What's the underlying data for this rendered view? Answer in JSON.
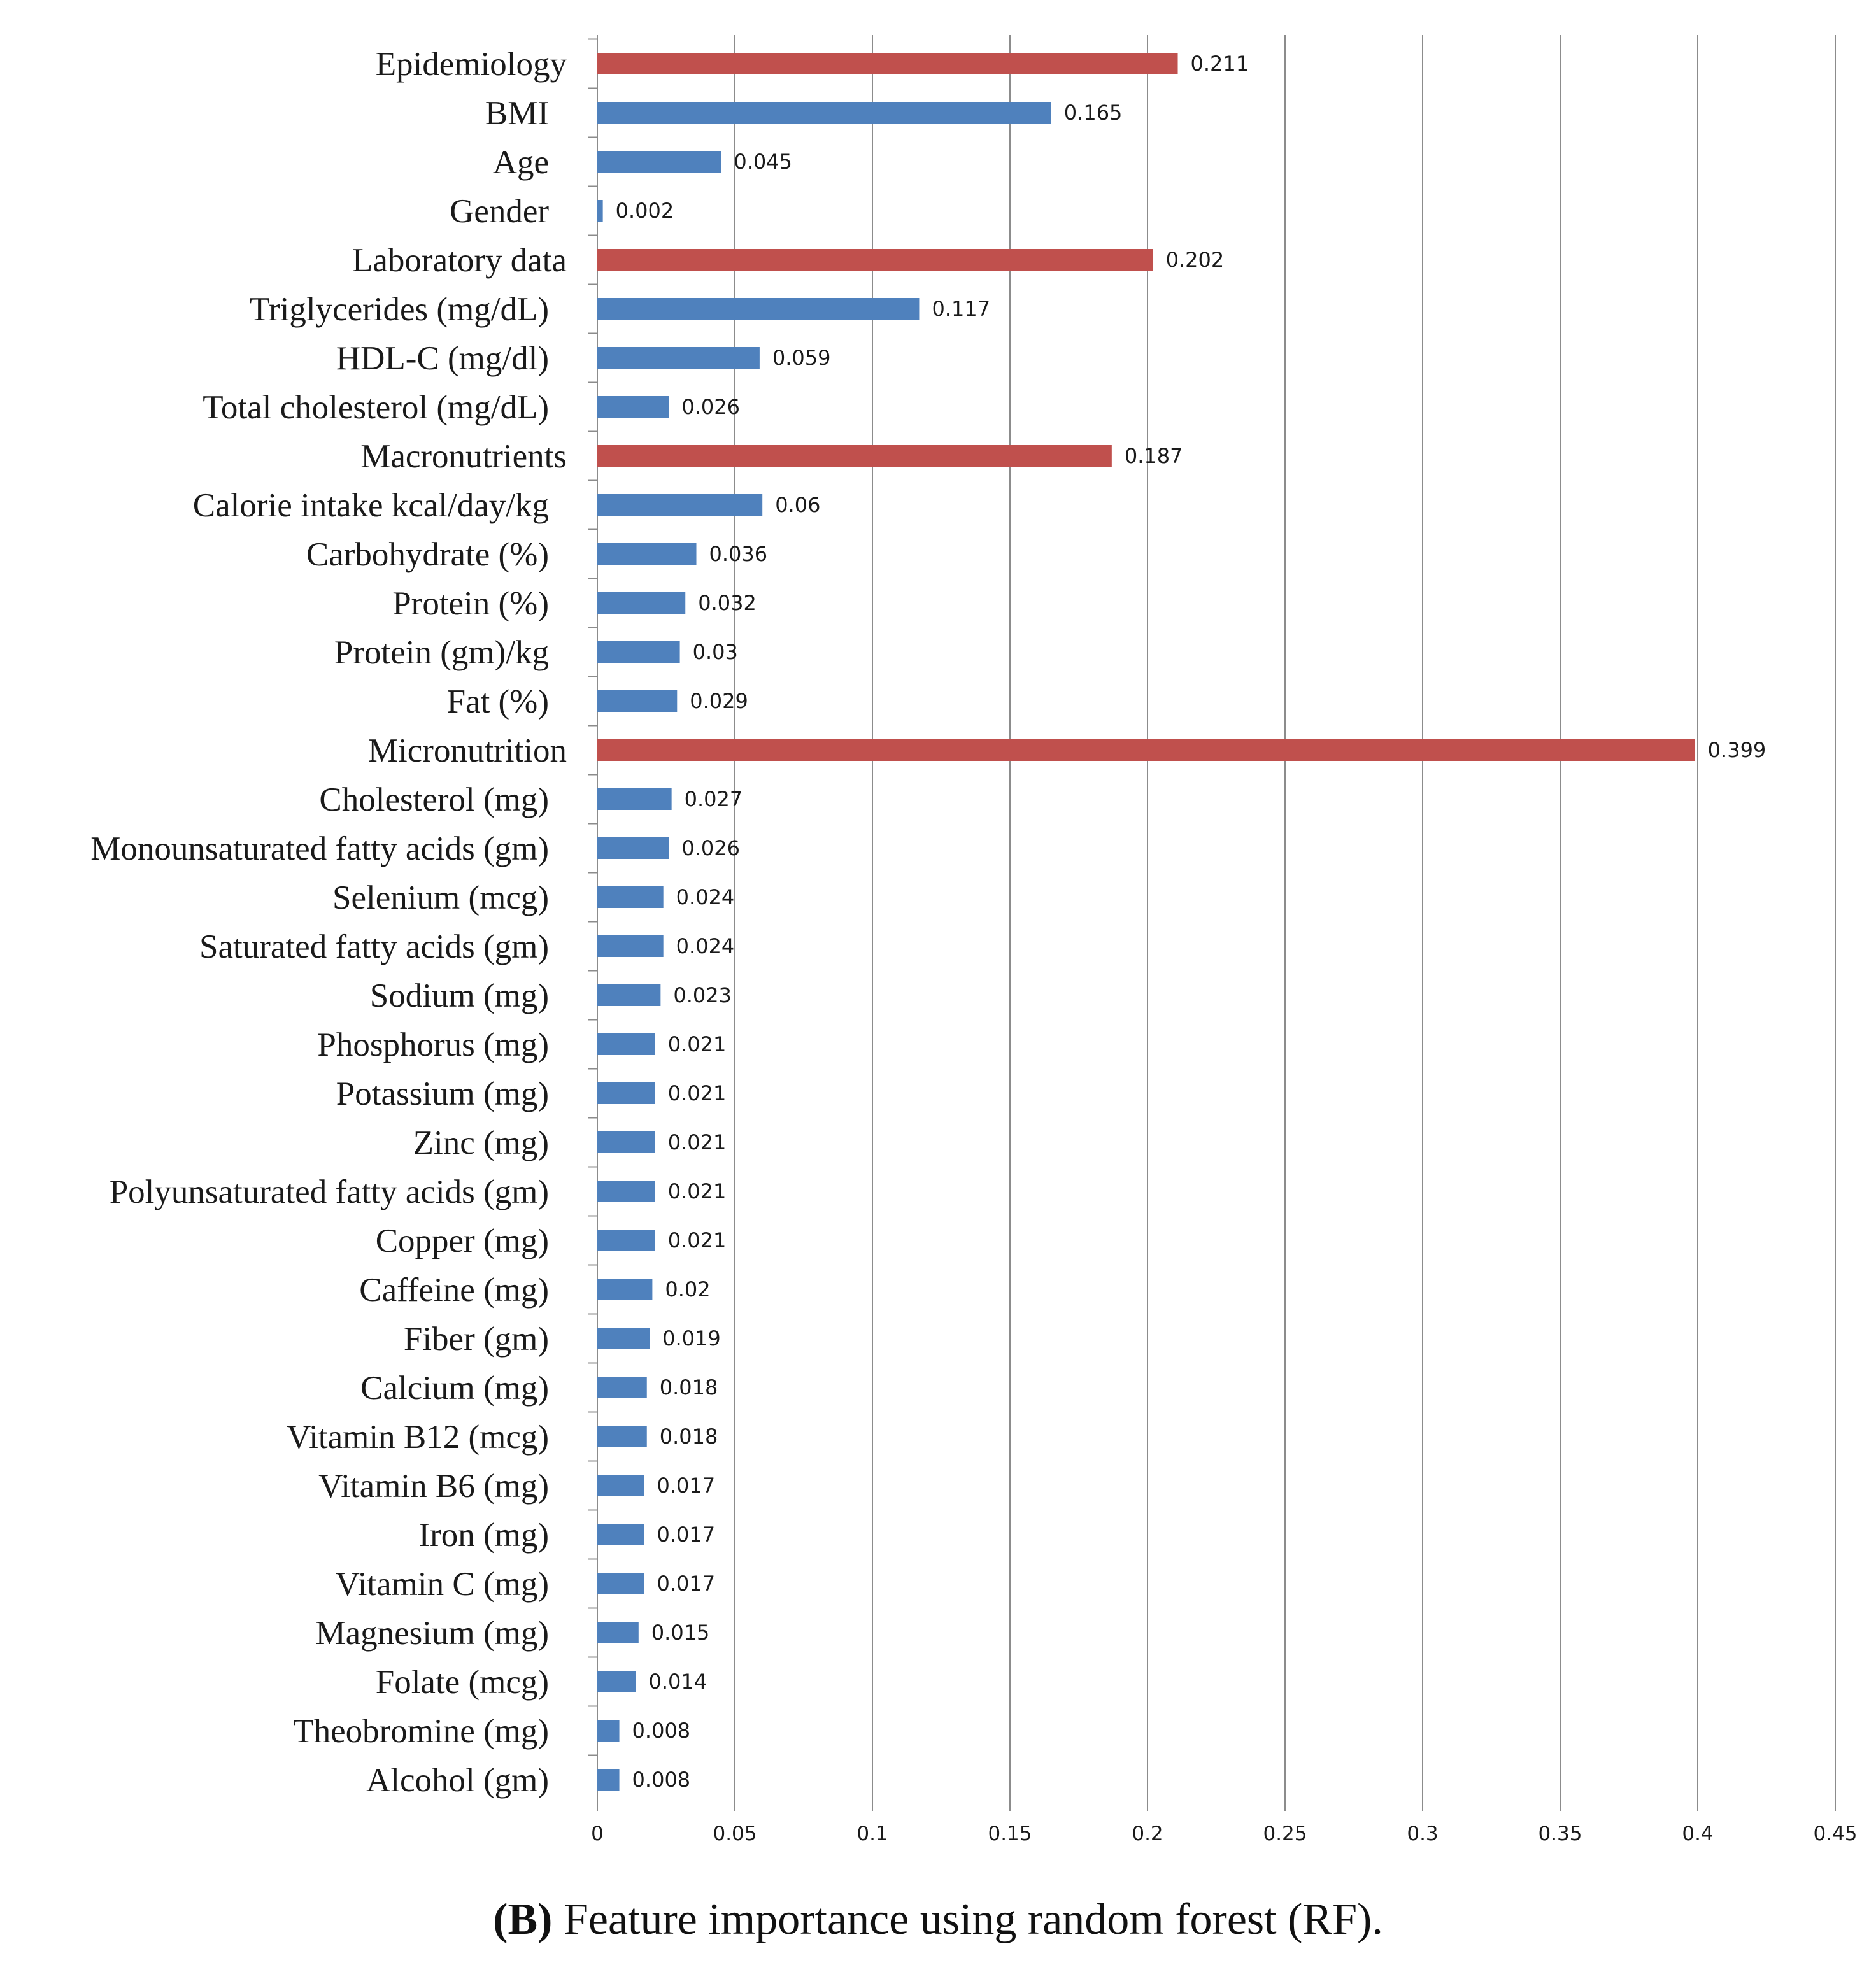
{
  "chart_data": {
    "type": "bar",
    "orientation": "horizontal",
    "title": "",
    "xlabel": "",
    "ylabel": "",
    "xlim": [
      0,
      0.45
    ],
    "ticks": [
      "0",
      "0.05",
      "0.1",
      "0.15",
      "0.2",
      "0.25",
      "0.3",
      "0.35",
      "0.4",
      "0.45"
    ],
    "grid": "vertical",
    "colors": {
      "group": "#c0504d",
      "feature": "#4f81bd"
    },
    "items": [
      {
        "label": "Epidemiology",
        "value": 0.211,
        "value_label": "0.211",
        "group": true
      },
      {
        "label": "BMI",
        "value": 0.165,
        "value_label": "0.165",
        "group": false
      },
      {
        "label": "Age",
        "value": 0.045,
        "value_label": "0.045",
        "group": false
      },
      {
        "label": "Gender",
        "value": 0.002,
        "value_label": "0.002",
        "group": false
      },
      {
        "label": "Laboratory data",
        "value": 0.202,
        "value_label": "0.202",
        "group": true
      },
      {
        "label": "Triglycerides (mg/dL)",
        "value": 0.117,
        "value_label": "0.117",
        "group": false
      },
      {
        "label": "HDL-C (mg/dl)",
        "value": 0.059,
        "value_label": "0.059",
        "group": false
      },
      {
        "label": "Total cholesterol (mg/dL)",
        "value": 0.026,
        "value_label": "0.026",
        "group": false
      },
      {
        "label": "Macronutrients",
        "value": 0.187,
        "value_label": "0.187",
        "group": true
      },
      {
        "label": "Calorie intake  kcal/day/kg",
        "value": 0.06,
        "value_label": "0.06",
        "group": false
      },
      {
        "label": "Carbohydrate (%)",
        "value": 0.036,
        "value_label": "0.036",
        "group": false
      },
      {
        "label": "Protein (%)",
        "value": 0.032,
        "value_label": "0.032",
        "group": false
      },
      {
        "label": "Protein (gm)/kg",
        "value": 0.03,
        "value_label": "0.03",
        "group": false
      },
      {
        "label": "Fat (%)",
        "value": 0.029,
        "value_label": "0.029",
        "group": false
      },
      {
        "label": "Micronutrition",
        "value": 0.399,
        "value_label": "0.399",
        "group": true
      },
      {
        "label": "Cholesterol (mg)",
        "value": 0.027,
        "value_label": "0.027",
        "group": false
      },
      {
        "label": "Monounsaturated fatty acids (gm)",
        "value": 0.026,
        "value_label": "0.026",
        "group": false
      },
      {
        "label": "Selenium (mcg)",
        "value": 0.024,
        "value_label": "0.024",
        "group": false
      },
      {
        "label": "Saturated fatty acids (gm)",
        "value": 0.024,
        "value_label": "0.024",
        "group": false
      },
      {
        "label": "Sodium (mg)",
        "value": 0.023,
        "value_label": "0.023",
        "group": false
      },
      {
        "label": "Phosphorus (mg)",
        "value": 0.021,
        "value_label": "0.021",
        "group": false
      },
      {
        "label": "Potassium (mg)",
        "value": 0.021,
        "value_label": "0.021",
        "group": false
      },
      {
        "label": "Zinc (mg)",
        "value": 0.021,
        "value_label": "0.021",
        "group": false
      },
      {
        "label": "Polyunsaturated fatty acids (gm)",
        "value": 0.021,
        "value_label": "0.021",
        "group": false
      },
      {
        "label": "Copper (mg)",
        "value": 0.021,
        "value_label": "0.021",
        "group": false
      },
      {
        "label": "Caffeine (mg)",
        "value": 0.02,
        "value_label": "0.02",
        "group": false
      },
      {
        "label": "Fiber (gm)",
        "value": 0.019,
        "value_label": "0.019",
        "group": false
      },
      {
        "label": "Calcium (mg)",
        "value": 0.018,
        "value_label": "0.018",
        "group": false
      },
      {
        "label": "Vitamin B12 (mcg)",
        "value": 0.018,
        "value_label": "0.018",
        "group": false
      },
      {
        "label": "Vitamin B6 (mg)",
        "value": 0.017,
        "value_label": "0.017",
        "group": false
      },
      {
        "label": "Iron (mg)",
        "value": 0.017,
        "value_label": "0.017",
        "group": false
      },
      {
        "label": "Vitamin C (mg)",
        "value": 0.017,
        "value_label": "0.017",
        "group": false
      },
      {
        "label": "Magnesium (mg)",
        "value": 0.015,
        "value_label": "0.015",
        "group": false
      },
      {
        "label": "Folate (mcg)",
        "value": 0.014,
        "value_label": "0.014",
        "group": false
      },
      {
        "label": "Theobromine (mg)",
        "value": 0.008,
        "value_label": "0.008",
        "group": false
      },
      {
        "label": "Alcohol (gm)",
        "value": 0.008,
        "value_label": "0.008",
        "group": false
      }
    ]
  },
  "caption": {
    "tag": "(B)",
    "text": " Feature importance using random forest (RF)."
  }
}
